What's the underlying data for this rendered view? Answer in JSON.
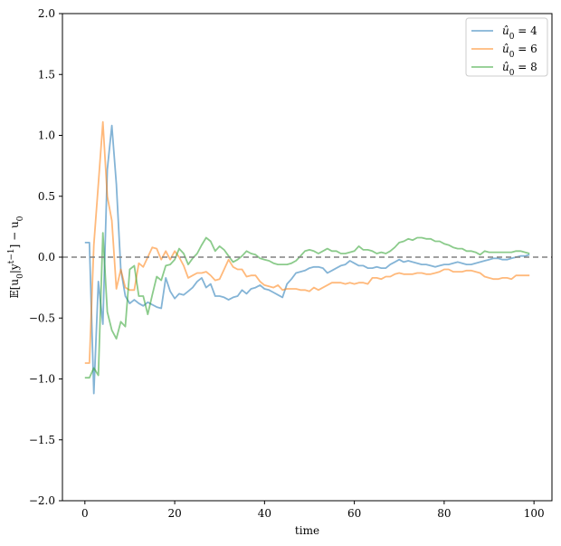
{
  "chart_data": {
    "type": "line",
    "title": "",
    "xlabel": "time",
    "ylabel": "E[u0|y^{t-1}] − u0",
    "xlim": [
      -5,
      104
    ],
    "ylim": [
      -2.0,
      2.0
    ],
    "xticks": [
      0,
      20,
      40,
      60,
      80,
      100
    ],
    "yticks": [
      -2.0,
      -1.5,
      -1.0,
      -0.5,
      0.0,
      0.5,
      1.0,
      1.5,
      2.0
    ],
    "xtick_labels": [
      "0",
      "20",
      "40",
      "60",
      "80",
      "100"
    ],
    "ytick_labels": [
      "−2.0",
      "−1.5",
      "−1.0",
      "−0.5",
      "0.0",
      "0.5",
      "1.0",
      "1.5",
      "2.0"
    ],
    "reference_line": {
      "y": 0.0,
      "style": "dashed",
      "color": "#808080"
    },
    "legend_position": "top-right",
    "series": [
      {
        "name": "û0 = 4",
        "legend_base": "û",
        "legend_sub": "0",
        "legend_rest": " = 4",
        "color": "#1f77b4",
        "x": [
          0,
          1,
          2,
          3,
          4,
          5,
          6,
          7,
          8,
          9,
          10,
          11,
          12,
          13,
          14,
          15,
          16,
          17,
          18,
          19,
          20,
          21,
          22,
          23,
          24,
          25,
          26,
          27,
          28,
          29,
          30,
          31,
          32,
          33,
          34,
          35,
          36,
          37,
          38,
          39,
          40,
          41,
          42,
          43,
          44,
          45,
          46,
          47,
          48,
          49,
          50,
          51,
          52,
          53,
          54,
          55,
          56,
          57,
          58,
          59,
          60,
          61,
          62,
          63,
          64,
          65,
          66,
          67,
          68,
          69,
          70,
          71,
          72,
          73,
          74,
          75,
          76,
          77,
          78,
          79,
          80,
          81,
          82,
          83,
          84,
          85,
          86,
          87,
          88,
          89,
          90,
          91,
          92,
          93,
          94,
          95,
          96,
          97,
          98,
          99
        ],
        "y": [
          0.12,
          0.12,
          -1.12,
          -0.2,
          -0.55,
          0.72,
          1.08,
          0.6,
          -0.1,
          -0.32,
          -0.38,
          -0.35,
          -0.38,
          -0.4,
          -0.37,
          -0.39,
          -0.41,
          -0.42,
          -0.17,
          -0.28,
          -0.34,
          -0.3,
          -0.31,
          -0.28,
          -0.25,
          -0.2,
          -0.17,
          -0.25,
          -0.22,
          -0.32,
          -0.32,
          -0.33,
          -0.35,
          -0.33,
          -0.32,
          -0.27,
          -0.3,
          -0.26,
          -0.25,
          -0.23,
          -0.26,
          -0.27,
          -0.29,
          -0.31,
          -0.33,
          -0.22,
          -0.18,
          -0.13,
          -0.12,
          -0.11,
          -0.09,
          -0.08,
          -0.08,
          -0.09,
          -0.13,
          -0.11,
          -0.09,
          -0.07,
          -0.06,
          -0.03,
          -0.05,
          -0.07,
          -0.07,
          -0.09,
          -0.09,
          -0.08,
          -0.09,
          -0.09,
          -0.06,
          -0.04,
          -0.02,
          -0.04,
          -0.03,
          -0.04,
          -0.05,
          -0.06,
          -0.06,
          -0.07,
          -0.08,
          -0.07,
          -0.06,
          -0.06,
          -0.05,
          -0.04,
          -0.05,
          -0.06,
          -0.06,
          -0.05,
          -0.04,
          -0.03,
          -0.02,
          -0.01,
          -0.01,
          -0.02,
          -0.02,
          -0.01,
          0.0,
          0.01,
          0.01,
          0.02
        ]
      },
      {
        "name": "û0 = 6",
        "legend_base": "û",
        "legend_sub": "0",
        "legend_rest": " = 6",
        "color": "#ff7f0e",
        "x": [
          0,
          1,
          2,
          3,
          4,
          5,
          6,
          7,
          8,
          9,
          10,
          11,
          12,
          13,
          14,
          15,
          16,
          17,
          18,
          19,
          20,
          21,
          22,
          23,
          24,
          25,
          26,
          27,
          28,
          29,
          30,
          31,
          32,
          33,
          34,
          35,
          36,
          37,
          38,
          39,
          40,
          41,
          42,
          43,
          44,
          45,
          46,
          47,
          48,
          49,
          50,
          51,
          52,
          53,
          54,
          55,
          56,
          57,
          58,
          59,
          60,
          61,
          62,
          63,
          64,
          65,
          66,
          67,
          68,
          69,
          70,
          71,
          72,
          73,
          74,
          75,
          76,
          77,
          78,
          79,
          80,
          81,
          82,
          83,
          84,
          85,
          86,
          87,
          88,
          89,
          90,
          91,
          92,
          93,
          94,
          95,
          96,
          97,
          98,
          99
        ],
        "y": [
          -0.87,
          -0.87,
          0.1,
          0.6,
          1.11,
          0.5,
          0.3,
          -0.26,
          -0.1,
          -0.25,
          -0.27,
          -0.27,
          -0.05,
          -0.08,
          0.0,
          0.08,
          0.07,
          -0.02,
          0.05,
          -0.02,
          0.05,
          0.0,
          -0.07,
          -0.17,
          -0.15,
          -0.13,
          -0.13,
          -0.12,
          -0.15,
          -0.19,
          -0.18,
          -0.1,
          -0.02,
          -0.08,
          -0.1,
          -0.1,
          -0.16,
          -0.15,
          -0.15,
          -0.2,
          -0.23,
          -0.24,
          -0.25,
          -0.23,
          -0.27,
          -0.26,
          -0.26,
          -0.26,
          -0.27,
          -0.27,
          -0.28,
          -0.25,
          -0.27,
          -0.25,
          -0.23,
          -0.21,
          -0.21,
          -0.21,
          -0.22,
          -0.21,
          -0.22,
          -0.21,
          -0.21,
          -0.22,
          -0.17,
          -0.17,
          -0.18,
          -0.16,
          -0.16,
          -0.14,
          -0.13,
          -0.14,
          -0.14,
          -0.14,
          -0.13,
          -0.13,
          -0.14,
          -0.14,
          -0.13,
          -0.12,
          -0.1,
          -0.1,
          -0.12,
          -0.12,
          -0.12,
          -0.11,
          -0.11,
          -0.12,
          -0.13,
          -0.16,
          -0.17,
          -0.18,
          -0.18,
          -0.17,
          -0.17,
          -0.18,
          -0.15,
          -0.15,
          -0.15,
          -0.15
        ]
      },
      {
        "name": "û0 = 8",
        "legend_base": "û",
        "legend_sub": "0",
        "legend_rest": " = 8",
        "color": "#2ca02c",
        "x": [
          0,
          1,
          2,
          3,
          4,
          5,
          6,
          7,
          8,
          9,
          10,
          11,
          12,
          13,
          14,
          15,
          16,
          17,
          18,
          19,
          20,
          21,
          22,
          23,
          24,
          25,
          26,
          27,
          28,
          29,
          30,
          31,
          32,
          33,
          34,
          35,
          36,
          37,
          38,
          39,
          40,
          41,
          42,
          43,
          44,
          45,
          46,
          47,
          48,
          49,
          50,
          51,
          52,
          53,
          54,
          55,
          56,
          57,
          58,
          59,
          60,
          61,
          62,
          63,
          64,
          65,
          66,
          67,
          68,
          69,
          70,
          71,
          72,
          73,
          74,
          75,
          76,
          77,
          78,
          79,
          80,
          81,
          82,
          83,
          84,
          85,
          86,
          87,
          88,
          89,
          90,
          91,
          92,
          93,
          94,
          95,
          96,
          97,
          98,
          99
        ],
        "y": [
          -0.99,
          -0.99,
          -0.91,
          -0.97,
          0.2,
          -0.45,
          -0.6,
          -0.67,
          -0.53,
          -0.57,
          -0.1,
          -0.07,
          -0.32,
          -0.32,
          -0.47,
          -0.31,
          -0.16,
          -0.19,
          -0.07,
          -0.06,
          -0.02,
          0.07,
          0.03,
          -0.06,
          -0.01,
          0.03,
          0.1,
          0.16,
          0.13,
          0.05,
          0.09,
          0.06,
          0.01,
          -0.04,
          -0.02,
          0.01,
          0.05,
          0.03,
          0.02,
          -0.01,
          -0.02,
          -0.03,
          -0.05,
          -0.06,
          -0.06,
          -0.06,
          -0.05,
          -0.03,
          0.01,
          0.05,
          0.06,
          0.05,
          0.03,
          0.05,
          0.07,
          0.05,
          0.05,
          0.03,
          0.03,
          0.04,
          0.05,
          0.09,
          0.06,
          0.06,
          0.05,
          0.03,
          0.04,
          0.03,
          0.05,
          0.08,
          0.12,
          0.13,
          0.15,
          0.14,
          0.16,
          0.16,
          0.15,
          0.15,
          0.13,
          0.13,
          0.11,
          0.1,
          0.08,
          0.07,
          0.07,
          0.05,
          0.05,
          0.04,
          0.02,
          0.05,
          0.04,
          0.04,
          0.04,
          0.04,
          0.04,
          0.04,
          0.05,
          0.05,
          0.04,
          0.03
        ]
      }
    ]
  }
}
